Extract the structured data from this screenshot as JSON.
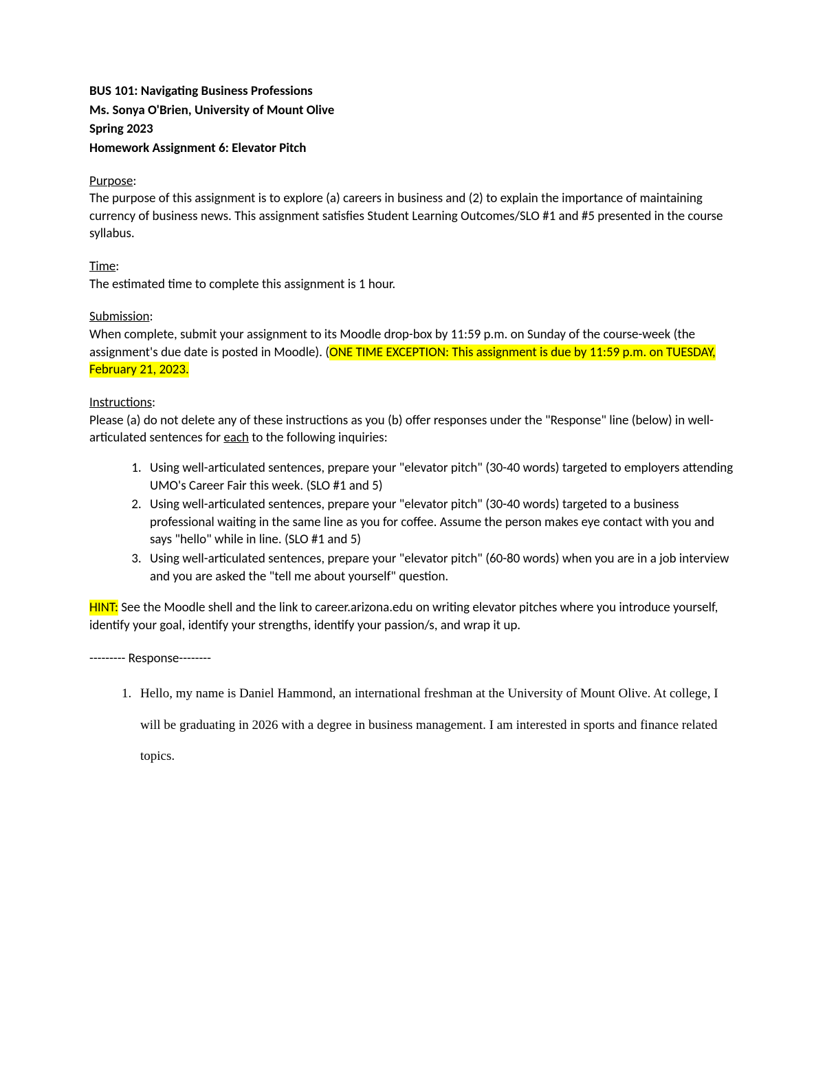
{
  "header": {
    "line1": "BUS 101:  Navigating Business Professions",
    "line2": "Ms. Sonya O'Brien, University of Mount Olive",
    "line3": "Spring 2023",
    "line4": "Homework Assignment 6:  Elevator Pitch"
  },
  "purpose": {
    "heading": "Purpose",
    "body": "The purpose of this assignment is to explore (a) careers in business and (2) to explain the importance of maintaining currency of business news.  This assignment satisfies Student Learning Outcomes/SLO #1 and #5 presented in the course syllabus."
  },
  "time": {
    "heading": "Time",
    "body": "The estimated time to complete this assignment is 1 hour."
  },
  "submission": {
    "heading": "Submission",
    "body_before_highlight": "When complete, submit your assignment to its Moodle drop-box by 11:59 p.m. on Sunday of the course-week (the assignment's due date is posted in Moodle). (",
    "highlight_text": "ONE TIME EXCEPTION:  This assignment is due by 11:59 p.m. on TUESDAY, February 21, 2023.",
    "body_after_highlight": ""
  },
  "instructions": {
    "heading": "Instructions",
    "intro_before_underline": "Please (a) do not delete any of these instructions as you (b) offer responses under the \"Response\" line (below) in well-articulated sentences for ",
    "underline_word": "each",
    "intro_after_underline": " to the following inquiries:",
    "items": [
      "Using well-articulated sentences, prepare your \"elevator pitch\" (30-40 words) targeted to employers attending UMO's Career Fair this week. (SLO #1 and 5)",
      "Using well-articulated sentences, prepare your \"elevator pitch\" (30-40 words) targeted to a business professional waiting in the same line as you for coffee.  Assume the person makes eye contact with you and says \"hello\" while in line. (SLO #1 and 5)",
      "Using well-articulated sentences, prepare your \"elevator pitch\" (60-80 words) when you are in a job interview and you are asked the \"tell me about yourself\" question."
    ]
  },
  "hint": {
    "label": "HINT:",
    "body": "  See the Moodle shell and the link to career.arizona.edu on writing elevator pitches where you introduce yourself, identify your goal, identify your strengths, identify your passion/s, and wrap it up."
  },
  "response": {
    "divider": "--------- Response--------",
    "items": [
      "Hello, my name is Daniel Hammond, an international freshman at the University of Mount Olive. At college, I will be graduating in 2026 with a degree in business management. I am interested in sports and finance related topics."
    ]
  },
  "colors": {
    "background": "#ffffff",
    "text": "#000000",
    "highlight": "#ffff00"
  },
  "typography": {
    "body_font": "Calibri",
    "response_font": "Times New Roman",
    "body_size_pt": 14,
    "line_height": 1.35
  }
}
